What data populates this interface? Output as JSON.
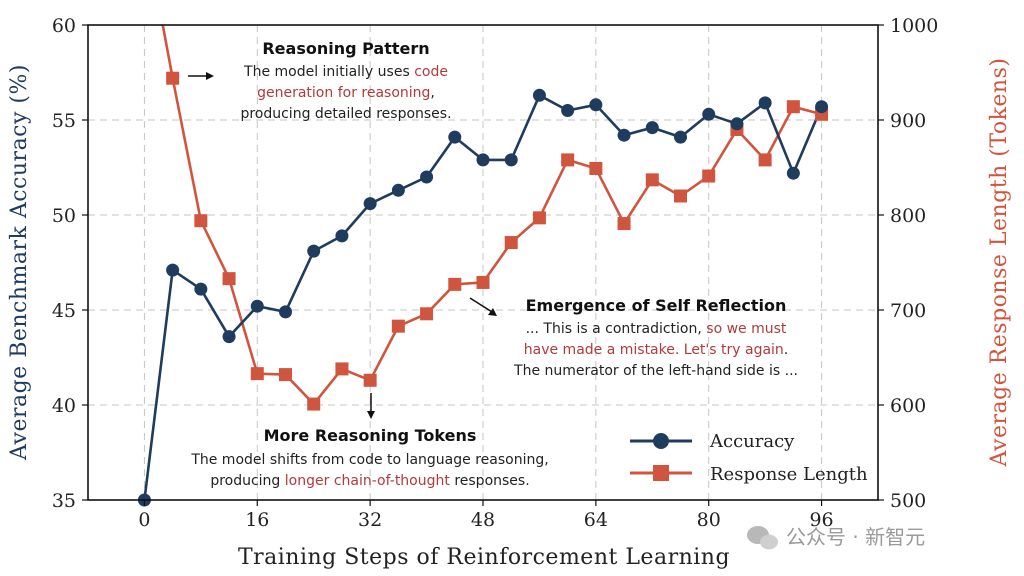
{
  "chart_data": {
    "type": "line",
    "xlabel": "Training Steps of Reinforcement Learning",
    "ylabel_left": "Average Benchmark Accuracy (%)",
    "ylabel_right": "Average Response Length (Tokens)",
    "x_ticks": [
      0,
      16,
      32,
      48,
      64,
      80,
      96
    ],
    "y_left_ticks": [
      35,
      40,
      45,
      50,
      55,
      60
    ],
    "y_right_ticks": [
      500,
      600,
      700,
      800,
      900,
      1000
    ],
    "xlim": [
      -8,
      104
    ],
    "ylim_left": [
      35,
      60
    ],
    "ylim_right": [
      500,
      1000
    ],
    "grid": true,
    "legend_position": "bottom-right",
    "colors": {
      "accuracy": "#1f3b5e",
      "length": "#d0553f"
    },
    "series": [
      {
        "name": "Accuracy",
        "axis": "left",
        "x": [
          0,
          4,
          8,
          12,
          16,
          20,
          24,
          28,
          32,
          36,
          40,
          44,
          48,
          52,
          56,
          60,
          64,
          68,
          72,
          76,
          80,
          84,
          88,
          92,
          96
        ],
        "values": [
          35.0,
          47.1,
          46.1,
          43.6,
          45.2,
          44.9,
          48.1,
          48.9,
          50.6,
          51.3,
          52.0,
          54.1,
          52.9,
          52.9,
          56.3,
          55.5,
          55.8,
          54.2,
          54.6,
          54.1,
          55.3,
          54.8,
          55.9,
          52.2,
          55.7
        ]
      },
      {
        "name": "Response Length",
        "axis": "right",
        "x": [
          4,
          8,
          12,
          16,
          20,
          24,
          28,
          32,
          36,
          40,
          44,
          48,
          52,
          56,
          60,
          64,
          68,
          72,
          76,
          80,
          84,
          88,
          92,
          96
        ],
        "values": [
          944,
          794,
          733,
          633,
          632,
          601,
          638,
          626,
          683,
          696,
          727,
          729,
          771,
          797,
          858,
          849,
          791,
          837,
          820,
          841,
          890,
          858,
          914,
          906
        ],
        "start_point": {
          "x": 2.6,
          "value": 1000
        }
      }
    ],
    "annotations": [
      {
        "id": "reasoning-pattern",
        "title": "Reasoning Pattern",
        "lines": [
          [
            {
              "text": "The model initially uses "
            },
            {
              "text": "code",
              "hl": true
            }
          ],
          [
            {
              "text": "generation for reasoning",
              "hl": true
            },
            {
              "text": ","
            }
          ],
          [
            {
              "text": "producing detailed responses."
            }
          ]
        ]
      },
      {
        "id": "self-reflection",
        "title": "Emergence of Self Reflection",
        "lines": [
          [
            {
              "text": "... This is a contradiction, "
            },
            {
              "text": "so we must",
              "hl": true
            }
          ],
          [
            {
              "text": "have made a mistake. Let's try again",
              "hl": true
            },
            {
              "text": "."
            }
          ],
          [
            {
              "text": "The numerator of the left-hand side is ..."
            }
          ]
        ]
      },
      {
        "id": "more-tokens",
        "title": "More Reasoning Tokens",
        "lines": [
          [
            {
              "text": "The model shifts from code to language reasoning,"
            }
          ],
          [
            {
              "text": "producing "
            },
            {
              "text": "longer chain-of-thought",
              "hl": true
            },
            {
              "text": " responses."
            }
          ]
        ]
      }
    ]
  },
  "watermark": {
    "text": "公众号 · 新智元"
  }
}
